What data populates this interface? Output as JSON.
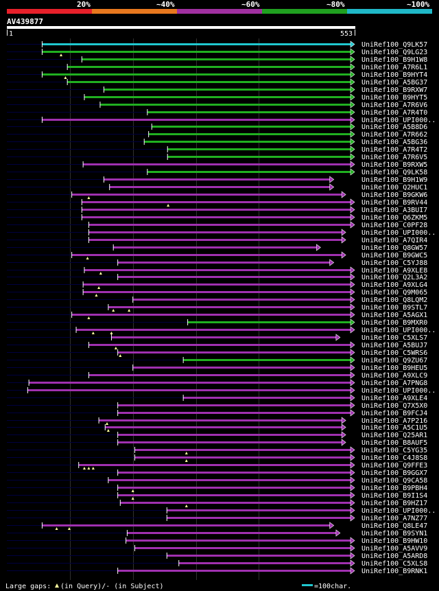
{
  "query_id": "AV439877",
  "scale_start": "1",
  "scale_end": "553",
  "legend": {
    "ticks": [
      "20%",
      "~40%",
      "~60%",
      "~80%",
      "~100%"
    ],
    "colors": [
      "#e8202a",
      "#e8781e",
      "#a030a0",
      "#20a020",
      "#20b8c8"
    ]
  },
  "footer": {
    "gaps_prefix": "Large gaps:",
    "gaps_text": "(in Query)/- (in Subject)",
    "scale_text": "=100char."
  },
  "colors": {
    "cyan": "#20c8d0",
    "green": "#20b020",
    "purple": "#a030b0",
    "dark": "#000040",
    "fade": "#b050b0"
  },
  "chart_data": {
    "type": "alignment",
    "query_length": 553,
    "hits": [
      {
        "name": "UniRef100_Q9LK57",
        "start": 57,
        "end": 553,
        "color": "cyan",
        "arrow": "right",
        "gaps_q": []
      },
      {
        "name": "UniRef100_Q9LG23",
        "start": 57,
        "end": 553,
        "color": "green",
        "arrow": "right",
        "gaps_q": [
          87
        ]
      },
      {
        "name": "UniRef100_B9H1W8",
        "start": 120,
        "end": 553,
        "color": "green",
        "arrow": "right",
        "gaps_q": []
      },
      {
        "name": "UniRef100_A7R6L1",
        "start": 97,
        "end": 553,
        "color": "green",
        "arrow": "right",
        "gaps_q": []
      },
      {
        "name": "UniRef100_B9HYT4",
        "start": 57,
        "end": 553,
        "color": "green",
        "arrow": "right",
        "gaps_q": [
          94
        ]
      },
      {
        "name": "UniRef100_A5BG37",
        "start": 97,
        "end": 553,
        "color": "green",
        "arrow": "right",
        "gaps_q": []
      },
      {
        "name": "UniRef100_B9RXW7",
        "start": 155,
        "end": 553,
        "color": "green",
        "arrow": "right",
        "gaps_q": []
      },
      {
        "name": "UniRef100_B9HYT5",
        "start": 124,
        "end": 553,
        "color": "green",
        "arrow": "right",
        "gaps_q": []
      },
      {
        "name": "UniRef100_A7R6V6",
        "start": 149,
        "end": 553,
        "color": "green",
        "arrow": "right",
        "gaps_q": []
      },
      {
        "name": "UniRef100_A7R4T0",
        "start": 224,
        "end": 553,
        "color": "green",
        "arrow": "right",
        "gaps_q": []
      },
      {
        "name": "UniRef100_UPI000..",
        "start": 57,
        "end": 553,
        "color": "purple",
        "arrow": "right",
        "gaps_q": []
      },
      {
        "name": "UniRef100_A5B8D6",
        "start": 231,
        "end": 553,
        "color": "green",
        "arrow": "right",
        "gaps_q": []
      },
      {
        "name": "UniRef100_A7R662",
        "start": 226,
        "end": 553,
        "color": "green",
        "arrow": "right",
        "gaps_q": []
      },
      {
        "name": "UniRef100_A5BG36",
        "start": 219,
        "end": 553,
        "color": "green",
        "arrow": "right",
        "gaps_q": []
      },
      {
        "name": "UniRef100_A7R4T2",
        "start": 256,
        "end": 553,
        "color": "green",
        "arrow": "right",
        "gaps_q": []
      },
      {
        "name": "UniRef100_A7R6V5",
        "start": 256,
        "end": 553,
        "color": "green",
        "arrow": "right",
        "gaps_q": []
      },
      {
        "name": "UniRef100_B9RXW5",
        "start": 122,
        "end": 553,
        "color": "purple",
        "arrow": "right",
        "gaps_q": []
      },
      {
        "name": "UniRef100_Q9LK58",
        "start": 224,
        "end": 553,
        "color": "green",
        "arrow": "right",
        "gaps_q": []
      },
      {
        "name": "UniRef100_B9H1W9",
        "start": 155,
        "end": 520,
        "color": "purple",
        "arrow": "right",
        "gaps_q": []
      },
      {
        "name": "UniRef100_Q2HUC1",
        "start": 164,
        "end": 520,
        "color": "purple",
        "arrow": "right",
        "gaps_q": []
      },
      {
        "name": "UniRef100_B9GKW6",
        "start": 104,
        "end": 539,
        "color": "purple",
        "arrow": "right",
        "gaps_q": [
          131
        ]
      },
      {
        "name": "UniRef100_B9RV44",
        "start": 120,
        "end": 553,
        "color": "purple",
        "arrow": "right",
        "gaps_q": [
          257
        ]
      },
      {
        "name": "UniRef100_A3BUI7",
        "start": 120,
        "end": 553,
        "color": "purple",
        "arrow": "right",
        "gaps_q": []
      },
      {
        "name": "UniRef100_Q6ZKM5",
        "start": 120,
        "end": 553,
        "color": "purple",
        "arrow": "right",
        "gaps_q": []
      },
      {
        "name": "UniRef100_C0PF28",
        "start": 131,
        "end": 553,
        "color": "purple",
        "arrow": "right",
        "gaps_q": []
      },
      {
        "name": "UniRef100_UPI000..",
        "start": 131,
        "end": 539,
        "color": "purple",
        "arrow": "right",
        "gaps_q": []
      },
      {
        "name": "UniRef100_A7QIR4",
        "start": 131,
        "end": 539,
        "color": "purple",
        "arrow": "right",
        "gaps_q": []
      },
      {
        "name": "UniRef100_Q8GW57",
        "start": 170,
        "end": 499,
        "color": "purple",
        "arrow": "right",
        "gaps_q": []
      },
      {
        "name": "UniRef100_B9GWC5",
        "start": 104,
        "end": 539,
        "color": "purple",
        "arrow": "right",
        "gaps_q": [
          129
        ]
      },
      {
        "name": "UniRef100_C5YJ88",
        "start": 177,
        "end": 520,
        "color": "purple",
        "arrow": "right",
        "gaps_q": []
      },
      {
        "name": "UniRef100_A9XLE8",
        "start": 124,
        "end": 553,
        "color": "purple",
        "arrow": "right",
        "gaps_q": [
          150
        ]
      },
      {
        "name": "UniRef100_Q2L3A2",
        "start": 177,
        "end": 553,
        "color": "purple",
        "arrow": "right",
        "gaps_q": []
      },
      {
        "name": "UniRef100_A9XLG4",
        "start": 122,
        "end": 553,
        "color": "purple",
        "arrow": "right",
        "gaps_q": [
          147
        ]
      },
      {
        "name": "UniRef100_Q9M065",
        "start": 122,
        "end": 553,
        "color": "purple",
        "arrow": "right",
        "gaps_q": [
          143
        ]
      },
      {
        "name": "UniRef100_Q8LQM2",
        "start": 201,
        "end": 553,
        "color": "purple",
        "arrow": "right",
        "gaps_q": []
      },
      {
        "name": "UniRef100_B9STL7",
        "start": 162,
        "end": 553,
        "color": "purple",
        "arrow": "right",
        "gaps_q": [
          170,
          195
        ]
      },
      {
        "name": "UniRef100_A5AGX1",
        "start": 104,
        "end": 553,
        "color": "purple",
        "arrow": "right",
        "gaps_q": [
          131
        ]
      },
      {
        "name": "UniRef100_B9MXR0",
        "start": 288,
        "end": 553,
        "color": "green",
        "arrow": "right",
        "gaps_q": []
      },
      {
        "name": "UniRef100_UPI000..",
        "start": 111,
        "end": 553,
        "color": "purple",
        "arrow": "right",
        "gaps_q": [
          138,
          167
        ]
      },
      {
        "name": "UniRef100_C5XLS7",
        "start": 167,
        "end": 530,
        "color": "purple",
        "arrow": "right",
        "gaps_q": []
      },
      {
        "name": "UniRef100_A5BUJ7",
        "start": 131,
        "end": 553,
        "color": "purple",
        "arrow": "right",
        "gaps_q": [
          174
        ]
      },
      {
        "name": "UniRef100_C5WRS6",
        "start": 177,
        "end": 553,
        "color": "purple",
        "arrow": "right",
        "gaps_q": [
          181
        ]
      },
      {
        "name": "UniRef100_Q9ZU67",
        "start": 281,
        "end": 553,
        "color": "green",
        "arrow": "right",
        "gaps_q": []
      },
      {
        "name": "UniRef100_B9HEU5",
        "start": 201,
        "end": 553,
        "color": "purple",
        "arrow": "right",
        "gaps_q": []
      },
      {
        "name": "UniRef100_A9XLC9",
        "start": 131,
        "end": 553,
        "color": "purple",
        "arrow": "right",
        "gaps_q": []
      },
      {
        "name": "UniRef100_A7PNG8",
        "start": 36,
        "end": 553,
        "color": "purple",
        "arrow": "right",
        "gaps_q": []
      },
      {
        "name": "UniRef100_UPI000..",
        "start": 34,
        "end": 553,
        "color": "purple",
        "arrow": "right",
        "gaps_q": []
      },
      {
        "name": "UniRef100_A9XLE4",
        "start": 281,
        "end": 553,
        "color": "purple",
        "arrow": "right",
        "gaps_q": []
      },
      {
        "name": "UniRef100_Q7X5X0",
        "start": 177,
        "end": 553,
        "color": "purple",
        "arrow": "right",
        "gaps_q": []
      },
      {
        "name": "UniRef100_B9FCJ4",
        "start": 177,
        "end": 553,
        "color": "purple",
        "arrow": "right",
        "gaps_q": []
      },
      {
        "name": "UniRef100_A7P216",
        "start": 147,
        "end": 539,
        "color": "purple",
        "arrow": "right",
        "gaps_q": [
          160
        ]
      },
      {
        "name": "UniRef100_A5C1U5",
        "start": 157,
        "end": 539,
        "color": "purple",
        "arrow": "right",
        "gaps_q": [
          162
        ]
      },
      {
        "name": "UniRef100_Q25AR1",
        "start": 177,
        "end": 539,
        "color": "purple",
        "arrow": "right",
        "gaps_q": []
      },
      {
        "name": "UniRef100_B8AUF5",
        "start": 177,
        "end": 539,
        "color": "purple",
        "arrow": "right",
        "gaps_q": []
      },
      {
        "name": "UniRef100_C5YG35",
        "start": 204,
        "end": 553,
        "color": "purple",
        "arrow": "right",
        "gaps_q": [
          286
        ]
      },
      {
        "name": "UniRef100_C4J8S8",
        "start": 204,
        "end": 553,
        "color": "purple",
        "arrow": "right",
        "gaps_q": [
          286
        ]
      },
      {
        "name": "UniRef100_Q9FFE3",
        "start": 115,
        "end": 553,
        "color": "purple",
        "arrow": "right",
        "gaps_q": [
          124,
          131,
          138
        ]
      },
      {
        "name": "UniRef100_B9GGX7",
        "start": 177,
        "end": 553,
        "color": "purple",
        "arrow": "right",
        "gaps_q": []
      },
      {
        "name": "UniRef100_Q9CA58",
        "start": 162,
        "end": 553,
        "color": "purple",
        "arrow": "right",
        "gaps_q": []
      },
      {
        "name": "UniRef100_B9PBH4",
        "start": 177,
        "end": 553,
        "color": "purple",
        "arrow": "right",
        "gaps_q": [
          201
        ]
      },
      {
        "name": "UniRef100_B9I1S4",
        "start": 177,
        "end": 553,
        "color": "purple",
        "arrow": "right",
        "gaps_q": [
          201
        ]
      },
      {
        "name": "UniRef100_B9HZ17",
        "start": 181,
        "end": 553,
        "color": "purple",
        "arrow": "right",
        "gaps_q": [
          286
        ]
      },
      {
        "name": "UniRef100_UPI000..",
        "start": 255,
        "end": 553,
        "color": "purple",
        "arrow": "right",
        "gaps_q": []
      },
      {
        "name": "UniRef100_A7NZ77",
        "start": 255,
        "end": 553,
        "color": "purple",
        "arrow": "right",
        "gaps_q": []
      },
      {
        "name": "UniRef100_Q8LE47",
        "start": 57,
        "end": 520,
        "color": "purple",
        "arrow": "right",
        "gaps_q": [
          80,
          100
        ]
      },
      {
        "name": "UniRef100_B9SYN1",
        "start": 192,
        "end": 530,
        "color": "purple",
        "arrow": "right",
        "gaps_q": []
      },
      {
        "name": "UniRef100_B9HW10",
        "start": 190,
        "end": 553,
        "color": "purple",
        "arrow": "right",
        "gaps_q": []
      },
      {
        "name": "UniRef100_A5AVV9",
        "start": 204,
        "end": 553,
        "color": "purple",
        "arrow": "right",
        "gaps_q": []
      },
      {
        "name": "UniRef100_A5ARD8",
        "start": 255,
        "end": 553,
        "color": "purple",
        "arrow": "right",
        "gaps_q": []
      },
      {
        "name": "UniRef100_C5XLS8",
        "start": 274,
        "end": 553,
        "color": "purple",
        "arrow": "right",
        "gaps_q": []
      },
      {
        "name": "UniRef100_B9RNK1",
        "start": 177,
        "end": 553,
        "color": "purple",
        "arrow": "right",
        "gaps_q": []
      }
    ]
  }
}
